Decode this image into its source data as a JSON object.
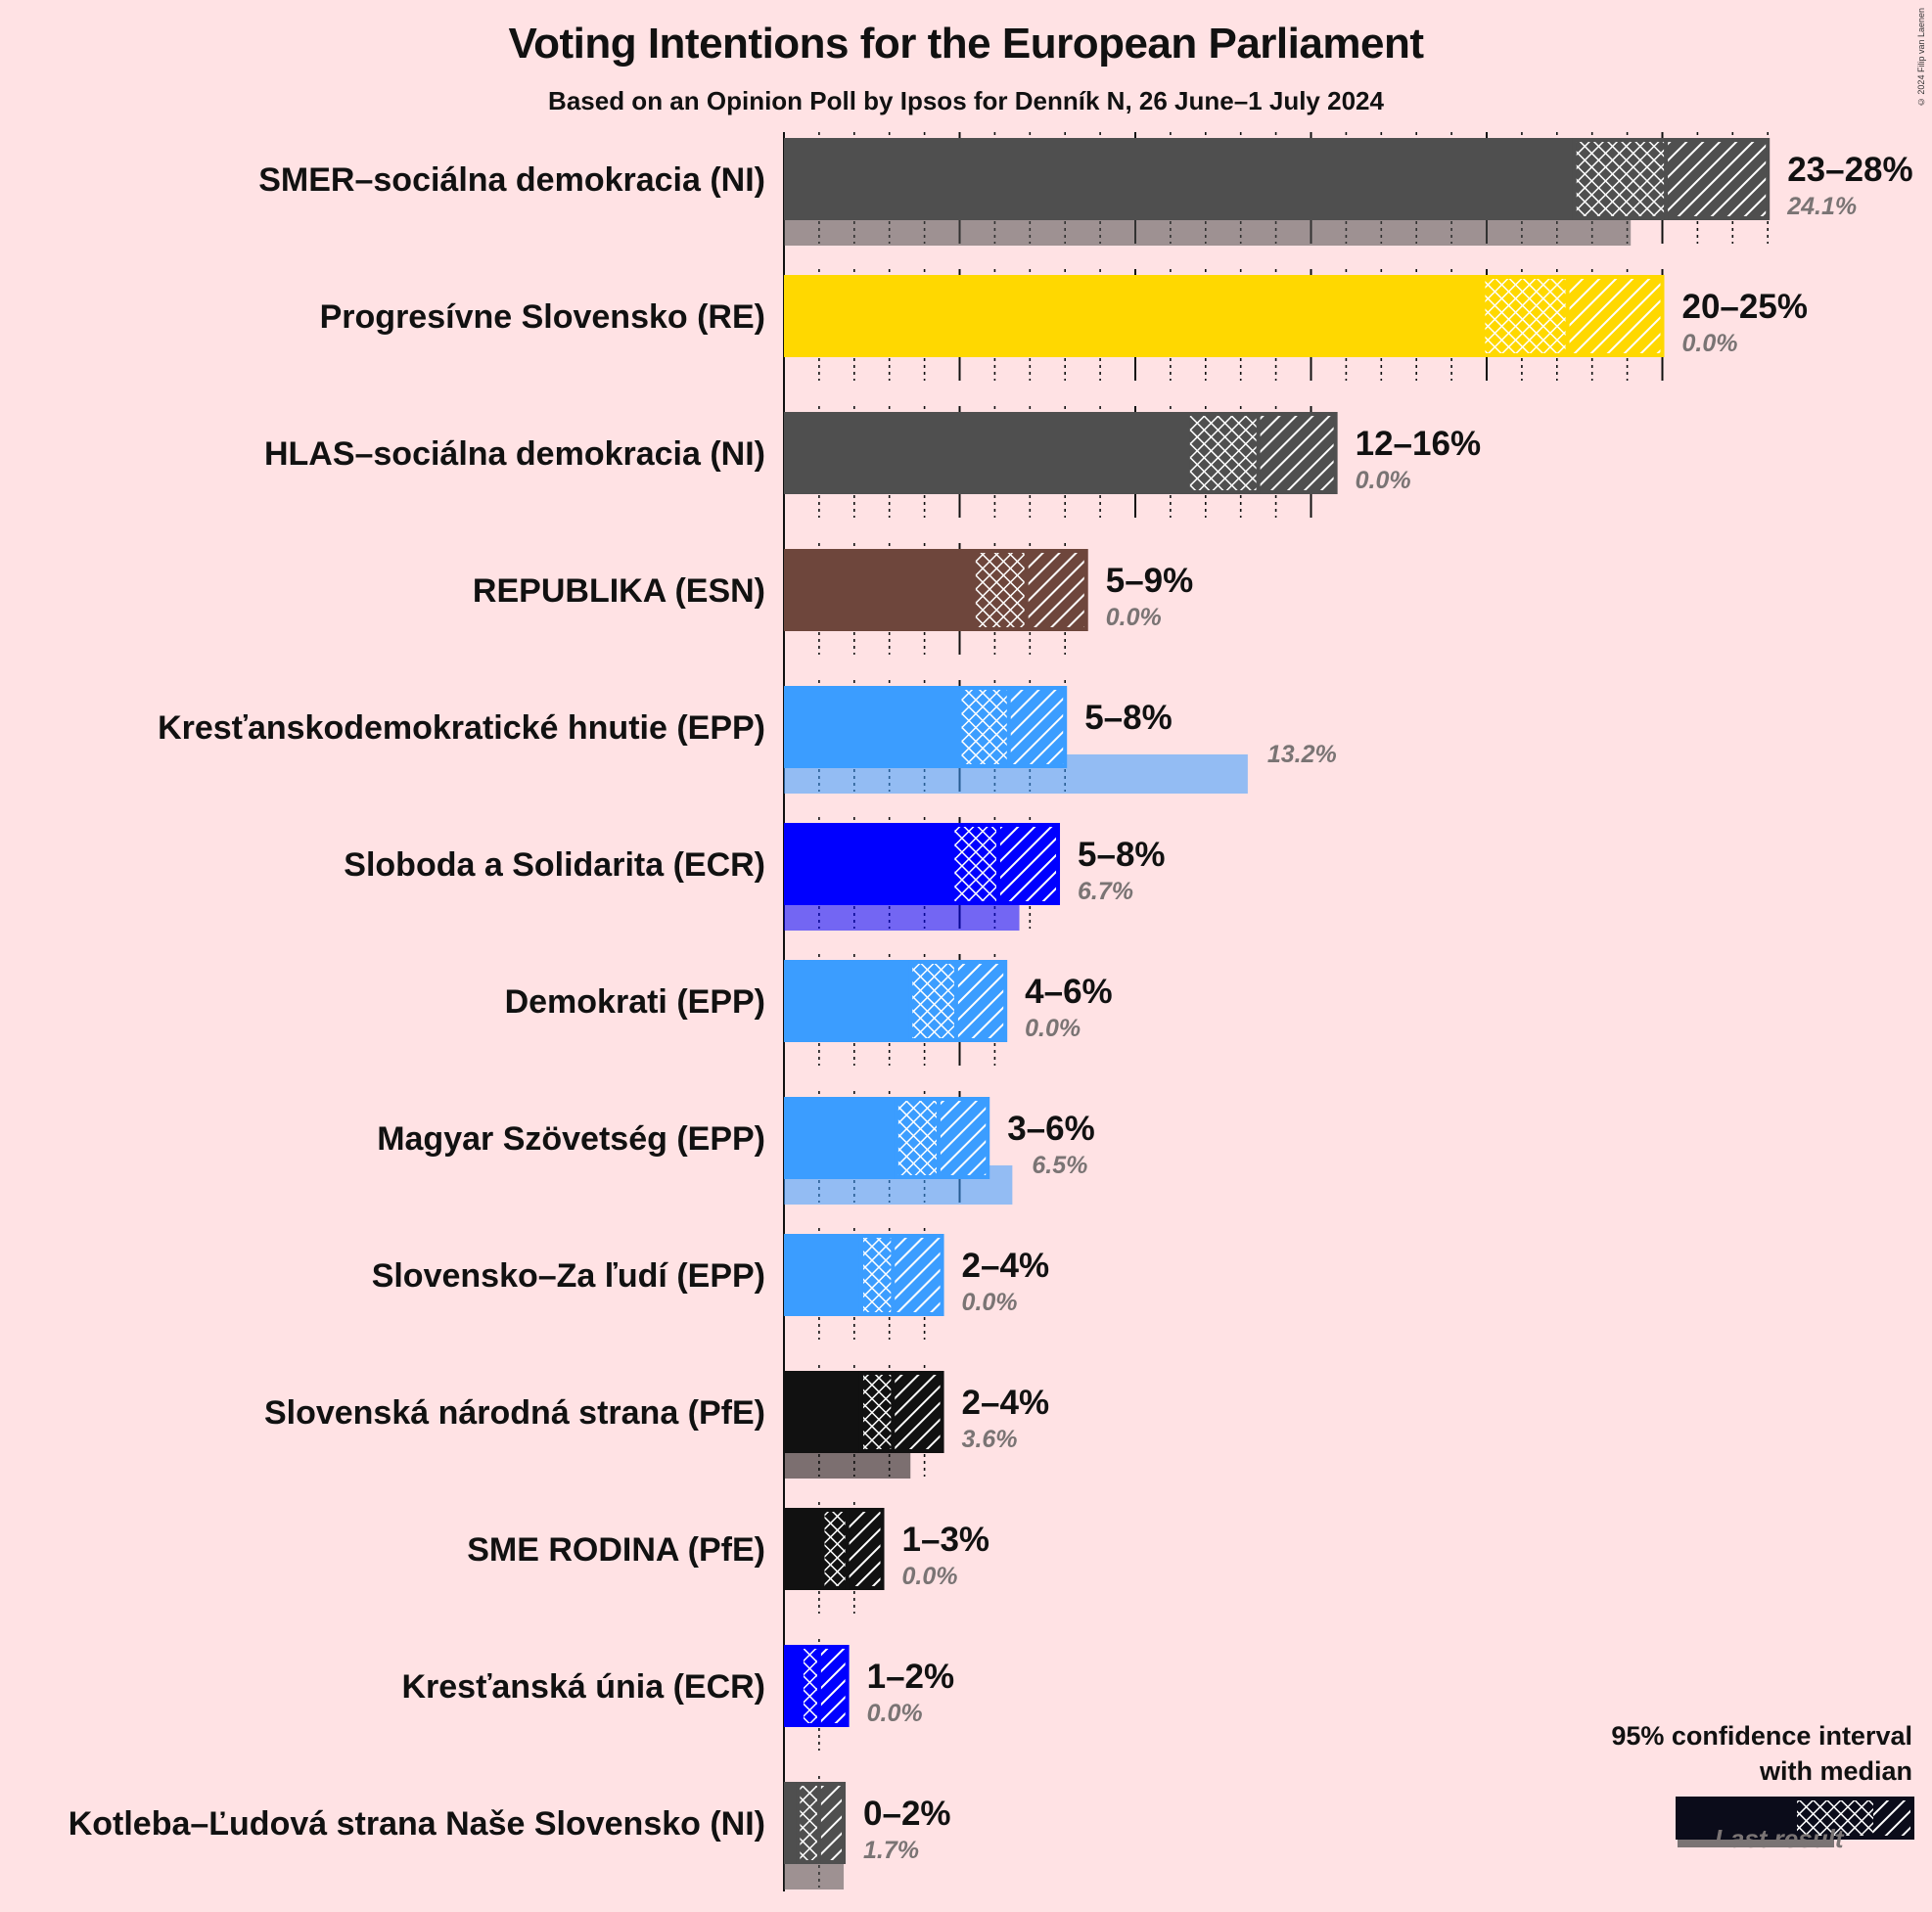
{
  "title": "Voting Intentions for the European Parliament",
  "subtitle": "Based on an Opinion Poll by Ipsos for Denník N, 26 June–1 July 2024",
  "copyright": "© 2024 Filip van Laenen",
  "legend": {
    "title_line1": "95% confidence interval",
    "title_line2": "with median",
    "last_result": "Last result"
  },
  "chart_data": {
    "type": "bar",
    "orientation": "horizontal",
    "unit": "%",
    "parties": [
      {
        "name": "SMER–sociálna demokracia (NI)",
        "color": "#4f4f4f",
        "low": 22.5,
        "median": 25.1,
        "high": 28.0,
        "range_label": "23–28%",
        "last": 24.1,
        "last_label": "24.1%"
      },
      {
        "name": "Progresívne Slovensko (RE)",
        "color": "#ffd800",
        "low": 19.9,
        "median": 22.3,
        "high": 25.0,
        "range_label": "20–25%",
        "last": 0.0,
        "last_label": "0.0%"
      },
      {
        "name": "HLAS–sociálna demokracia (NI)",
        "color": "#4f4f4f",
        "low": 11.5,
        "median": 13.5,
        "high": 15.7,
        "range_label": "12–16%",
        "last": 0.0,
        "last_label": "0.0%"
      },
      {
        "name": "REPUBLIKA (ESN)",
        "color": "#6e463c",
        "low": 5.4,
        "median": 6.9,
        "high": 8.6,
        "range_label": "5–9%",
        "last": 0.0,
        "last_label": "0.0%"
      },
      {
        "name": "Kresťanskodemokratické hnutie (EPP)",
        "color": "#3b9dff",
        "low": 5.0,
        "median": 6.4,
        "high": 8.0,
        "range_label": "5–8%",
        "last": 13.2,
        "last_label": "13.2%"
      },
      {
        "name": "Sloboda a Solidarita (ECR)",
        "color": "#0000ff",
        "low": 4.8,
        "median": 6.1,
        "high": 7.8,
        "range_label": "5–8%",
        "last": 6.7,
        "last_label": "6.7%"
      },
      {
        "name": "Demokrati (EPP)",
        "color": "#3b9dff",
        "low": 3.6,
        "median": 4.9,
        "high": 6.3,
        "range_label": "4–6%",
        "last": 0.0,
        "last_label": "0.0%"
      },
      {
        "name": "Magyar Szövetség (EPP)",
        "color": "#3b9dff",
        "low": 3.2,
        "median": 4.4,
        "high": 5.8,
        "range_label": "3–6%",
        "last": 6.5,
        "last_label": "6.5%"
      },
      {
        "name": "Slovensko–Za ľudí (EPP)",
        "color": "#3b9dff",
        "low": 2.2,
        "median": 3.1,
        "high": 4.5,
        "range_label": "2–4%",
        "last": 0.0,
        "last_label": "0.0%"
      },
      {
        "name": "Slovenská národná strana (PfE)",
        "color": "#111111",
        "low": 2.2,
        "median": 3.1,
        "high": 4.5,
        "range_label": "2–4%",
        "last": 3.6,
        "last_label": "3.6%"
      },
      {
        "name": "SME RODINA (PfE)",
        "color": "#111111",
        "low": 1.1,
        "median": 1.8,
        "high": 2.8,
        "range_label": "1–3%",
        "last": 0.0,
        "last_label": "0.0%"
      },
      {
        "name": "Kresťanská únia (ECR)",
        "color": "#0000ff",
        "low": 0.5,
        "median": 1.0,
        "high": 1.8,
        "range_label": "1–2%",
        "last": 0.0,
        "last_label": "0.0%"
      },
      {
        "name": "Kotleba–Ľudová strana Naše Slovensko (NI)",
        "color": "#4f4f4f",
        "low": 0.4,
        "median": 1.0,
        "high": 1.7,
        "range_label": "0–2%",
        "last": 1.7,
        "last_label": "1.7%"
      }
    ]
  }
}
